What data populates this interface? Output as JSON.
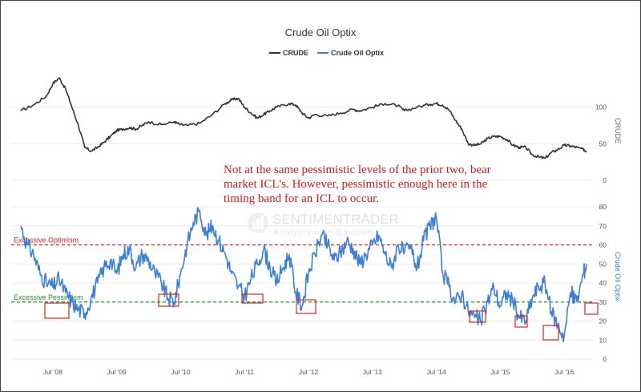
{
  "chart_data": {
    "type": "line",
    "title": "Crude Oil Optix",
    "legend": {
      "position": "top-center",
      "entries": [
        "CRUDE",
        "Crude Oil Optix"
      ]
    },
    "colors": {
      "crude": "#333333",
      "optix": "#3c7fd6",
      "optimism": "#d62020",
      "pessimism": "#2a8a2a",
      "annotation": "#d11a1a"
    },
    "x_ticks": [
      "Jul '08",
      "Jul '09",
      "Jul '10",
      "Jul '11",
      "Jul '12",
      "Jul '13",
      "Jul '14",
      "Jul '15",
      "Jul '16"
    ],
    "panels": [
      {
        "name": "CRUDE",
        "ylabel": "CRUDE",
        "ylim": [
          0,
          150
        ],
        "yticks": [
          "100",
          "50",
          "0"
        ],
        "series": [
          {
            "name": "CRUDE",
            "x": [
              2008.0,
              2008.2,
              2008.4,
              2008.5,
              2008.6,
              2008.7,
              2008.8,
              2008.9,
              2009.0,
              2009.1,
              2009.2,
              2009.3,
              2009.4,
              2009.5,
              2009.6,
              2009.7,
              2009.8,
              2009.9,
              2010.0,
              2010.2,
              2010.4,
              2010.5,
              2010.6,
              2010.8,
              2011.0,
              2011.2,
              2011.3,
              2011.4,
              2011.5,
              2011.6,
              2011.7,
              2011.8,
              2011.9,
              2012.0,
              2012.2,
              2012.3,
              2012.4,
              2012.5,
              2012.6,
              2012.8,
              2013.0,
              2013.2,
              2013.3,
              2013.5,
              2013.7,
              2013.9,
              2014.0,
              2014.2,
              2014.4,
              2014.5,
              2014.6,
              2014.7,
              2014.8,
              2014.9,
              2015.0,
              2015.1,
              2015.2,
              2015.3,
              2015.4,
              2015.5,
              2015.6,
              2015.7,
              2015.8,
              2015.9,
              2016.0,
              2016.1,
              2016.2,
              2016.3,
              2016.4,
              2016.5,
              2016.6,
              2016.7,
              2016.8,
              2016.85
            ],
            "y": [
              95,
              103,
              115,
              132,
              140,
              125,
              100,
              75,
              45,
              40,
              45,
              52,
              60,
              68,
              70,
              72,
              70,
              75,
              80,
              76,
              80,
              76,
              75,
              78,
              90,
              105,
              110,
              112,
              100,
              92,
              85,
              90,
              95,
              100,
              105,
              103,
              92,
              85,
              90,
              88,
              92,
              97,
              95,
              100,
              105,
              102,
              95,
              100,
              104,
              105,
              103,
              96,
              82,
              70,
              50,
              48,
              50,
              57,
              60,
              60,
              56,
              48,
              45,
              45,
              35,
              32,
              30,
              38,
              42,
              48,
              47,
              45,
              42,
              40
            ]
          }
        ]
      },
      {
        "name": "Crude Oil Optix",
        "ylabel": "Crude Oil Optix",
        "ylim": [
          0,
          80
        ],
        "yticks": [
          "80",
          "70",
          "60",
          "50",
          "40",
          "30",
          "20",
          "10",
          "0"
        ],
        "series": [
          {
            "name": "Crude Oil Optix",
            "x": [
              2008.0,
              2008.1,
              2008.2,
              2008.3,
              2008.4,
              2008.5,
              2008.6,
              2008.7,
              2008.8,
              2008.9,
              2009.0,
              2009.1,
              2009.2,
              2009.3,
              2009.4,
              2009.5,
              2009.6,
              2009.7,
              2009.8,
              2009.9,
              2010.0,
              2010.1,
              2010.2,
              2010.3,
              2010.4,
              2010.5,
              2010.6,
              2010.7,
              2010.8,
              2010.9,
              2011.0,
              2011.1,
              2011.2,
              2011.3,
              2011.4,
              2011.5,
              2011.6,
              2011.7,
              2011.8,
              2011.9,
              2012.0,
              2012.1,
              2012.2,
              2012.3,
              2012.4,
              2012.5,
              2012.6,
              2012.7,
              2012.8,
              2012.9,
              2013.0,
              2013.1,
              2013.2,
              2013.3,
              2013.4,
              2013.5,
              2013.6,
              2013.7,
              2013.8,
              2013.9,
              2014.0,
              2014.1,
              2014.2,
              2014.3,
              2014.4,
              2014.5,
              2014.6,
              2014.7,
              2014.8,
              2014.9,
              2015.0,
              2015.1,
              2015.2,
              2015.3,
              2015.4,
              2015.5,
              2015.6,
              2015.7,
              2015.8,
              2015.9,
              2016.0,
              2016.1,
              2016.2,
              2016.3,
              2016.4,
              2016.5,
              2016.6,
              2016.7,
              2016.8,
              2016.85
            ],
            "y": [
              70,
              60,
              55,
              45,
              40,
              38,
              42,
              35,
              30,
              26,
              24,
              32,
              40,
              48,
              52,
              45,
              55,
              58,
              48,
              55,
              52,
              45,
              40,
              32,
              30,
              45,
              60,
              72,
              78,
              65,
              70,
              62,
              55,
              45,
              38,
              33,
              42,
              50,
              58,
              48,
              40,
              48,
              55,
              35,
              28,
              45,
              55,
              65,
              60,
              52,
              56,
              62,
              58,
              50,
              55,
              60,
              65,
              55,
              48,
              60,
              56,
              58,
              48,
              62,
              70,
              75,
              45,
              38,
              30,
              35,
              25,
              22,
              20,
              30,
              38,
              28,
              35,
              30,
              22,
              20,
              32,
              38,
              40,
              25,
              18,
              12,
              35,
              30,
              45,
              50
            ]
          }
        ],
        "reference_lines": [
          {
            "label": "Excessive Optimism",
            "value": 60
          },
          {
            "label": "Excessive Pessimism",
            "value": 30
          }
        ]
      }
    ],
    "annotation": "Not at the same pessimistic levels of the prior two, bear market ICL's.  However, pessimistic enough here in the timing band for an ICL to occur."
  },
  "watermark": {
    "name": "SENTIMENTRADER",
    "tagline": "Analysis over Emotion"
  }
}
